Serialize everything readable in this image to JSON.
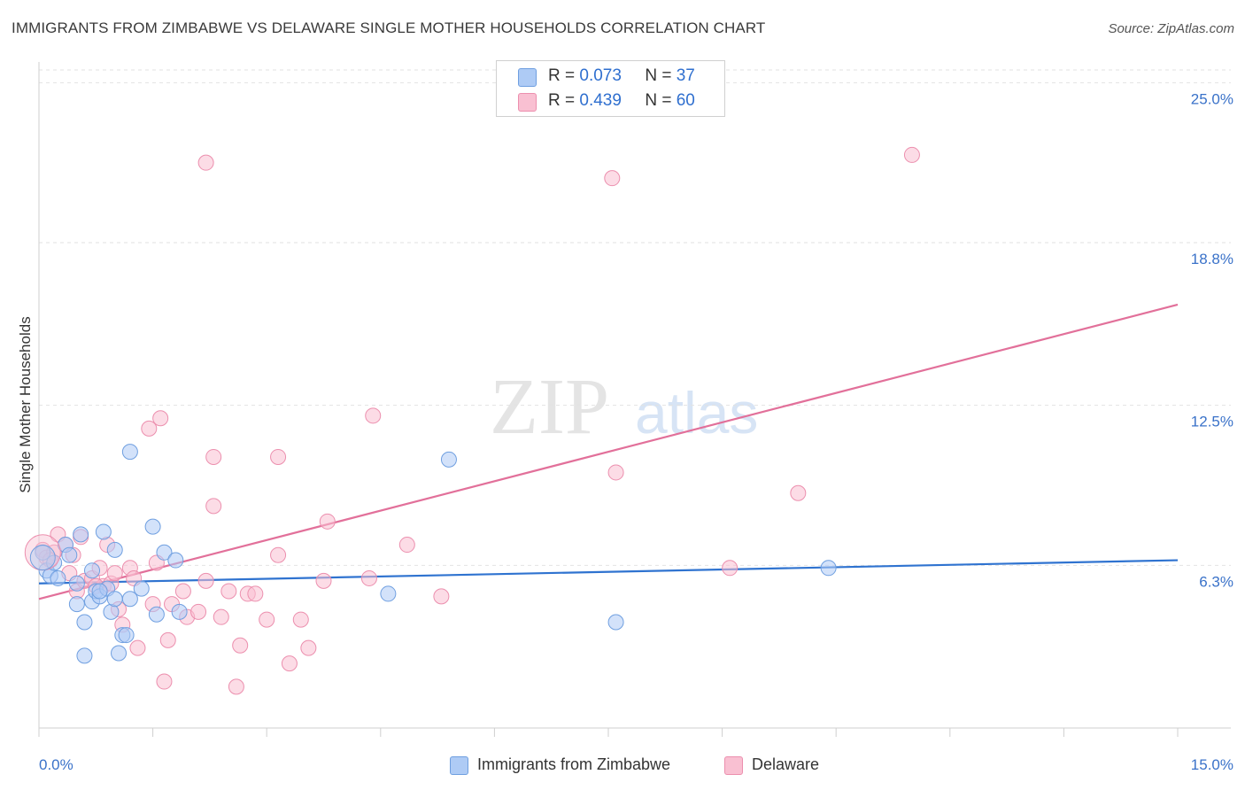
{
  "title": "IMMIGRANTS FROM ZIMBABWE VS DELAWARE SINGLE MOTHER HOUSEHOLDS CORRELATION CHART",
  "source": "Source: ZipAtlas.com",
  "watermark": {
    "zip": "ZIP",
    "atlas": "atlas"
  },
  "legend": {
    "series1": {
      "r_label": "R =",
      "r_value": "0.073",
      "n_label": "N =",
      "n_value": "37"
    },
    "series2": {
      "r_label": "R =",
      "r_value": "0.439",
      "n_label": "N =",
      "n_value": "60"
    }
  },
  "colors": {
    "blue_fill": "#aecbf5",
    "blue_stroke": "#6f9fe0",
    "blue_line": "#2f73d0",
    "pink_fill": "#f9c0d2",
    "pink_stroke": "#ec8fae",
    "pink_line": "#e2709a",
    "axis_text": "#3a72c9",
    "grid": "#e2e2e2"
  },
  "chart_data": {
    "type": "scatter",
    "title": "IMMIGRANTS FROM ZIMBABWE VS DELAWARE SINGLE MOTHER HOUSEHOLDS CORRELATION CHART",
    "xlabel": "",
    "ylabel": "Single Mother Households",
    "xlim": [
      0,
      15
    ],
    "ylim": [
      0,
      25.8
    ],
    "x_tick_labels": [
      "0.0%",
      "15.0%"
    ],
    "y_ticks": [
      6.3,
      12.5,
      18.8,
      25.0
    ],
    "y_tick_labels": [
      "6.3%",
      "12.5%",
      "18.8%",
      "25.0%"
    ],
    "grid": true,
    "legend_position": "top-center",
    "series": [
      {
        "name": "Immigrants from Zimbabwe",
        "color": "blue",
        "r": 0.073,
        "n": 37,
        "trend": {
          "x": [
            0,
            15
          ],
          "y": [
            5.6,
            6.5
          ]
        },
        "points": [
          [
            0.05,
            6.8
          ],
          [
            0.1,
            6.1
          ],
          [
            0.15,
            5.9
          ],
          [
            0.2,
            6.4
          ],
          [
            0.35,
            7.1
          ],
          [
            0.4,
            6.7
          ],
          [
            0.5,
            5.6
          ],
          [
            0.5,
            4.8
          ],
          [
            0.55,
            7.5
          ],
          [
            0.6,
            4.1
          ],
          [
            0.6,
            2.8
          ],
          [
            0.7,
            6.1
          ],
          [
            0.7,
            4.9
          ],
          [
            0.75,
            5.3
          ],
          [
            0.8,
            5.1
          ],
          [
            0.85,
            7.6
          ],
          [
            0.9,
            5.4
          ],
          [
            0.95,
            4.5
          ],
          [
            1.0,
            6.9
          ],
          [
            1.05,
            2.9
          ],
          [
            1.1,
            3.6
          ],
          [
            1.15,
            3.6
          ],
          [
            1.2,
            5.0
          ],
          [
            1.35,
            5.4
          ],
          [
            1.5,
            7.8
          ],
          [
            1.55,
            4.4
          ],
          [
            1.65,
            6.8
          ],
          [
            1.8,
            6.5
          ],
          [
            1.85,
            4.5
          ],
          [
            1.2,
            10.7
          ],
          [
            1.0,
            5.0
          ],
          [
            0.8,
            5.3
          ],
          [
            4.6,
            5.2
          ],
          [
            5.4,
            10.4
          ],
          [
            7.6,
            4.1
          ],
          [
            10.4,
            6.2
          ],
          [
            0.25,
            5.8
          ]
        ]
      },
      {
        "name": "Delaware",
        "color": "pink",
        "r": 0.439,
        "n": 60,
        "trend": {
          "x": [
            0,
            15
          ],
          "y": [
            5.0,
            16.4
          ]
        },
        "points": [
          [
            0.05,
            6.9
          ],
          [
            0.1,
            6.6
          ],
          [
            0.2,
            6.8
          ],
          [
            0.25,
            7.5
          ],
          [
            0.35,
            7.1
          ],
          [
            0.4,
            6.0
          ],
          [
            0.5,
            5.3
          ],
          [
            0.55,
            7.4
          ],
          [
            0.6,
            5.7
          ],
          [
            0.7,
            5.8
          ],
          [
            0.8,
            6.2
          ],
          [
            0.85,
            5.5
          ],
          [
            0.9,
            7.1
          ],
          [
            0.95,
            5.6
          ],
          [
            1.0,
            6.0
          ],
          [
            1.05,
            4.6
          ],
          [
            1.1,
            4.0
          ],
          [
            1.2,
            6.2
          ],
          [
            1.25,
            5.8
          ],
          [
            1.3,
            3.1
          ],
          [
            1.45,
            11.6
          ],
          [
            1.5,
            4.8
          ],
          [
            1.55,
            6.4
          ],
          [
            1.6,
            12.0
          ],
          [
            1.65,
            1.8
          ],
          [
            1.7,
            3.4
          ],
          [
            1.75,
            4.8
          ],
          [
            1.9,
            5.3
          ],
          [
            1.95,
            4.3
          ],
          [
            2.1,
            4.5
          ],
          [
            2.2,
            5.7
          ],
          [
            2.3,
            10.5
          ],
          [
            2.3,
            8.6
          ],
          [
            2.4,
            4.3
          ],
          [
            2.5,
            5.3
          ],
          [
            2.6,
            1.6
          ],
          [
            2.65,
            3.2
          ],
          [
            2.75,
            5.2
          ],
          [
            2.85,
            5.2
          ],
          [
            3.0,
            4.2
          ],
          [
            3.15,
            10.5
          ],
          [
            3.15,
            6.7
          ],
          [
            3.3,
            2.5
          ],
          [
            3.45,
            4.2
          ],
          [
            3.55,
            3.1
          ],
          [
            3.75,
            5.7
          ],
          [
            3.8,
            8.0
          ],
          [
            2.2,
            21.9
          ],
          [
            4.35,
            5.8
          ],
          [
            4.4,
            12.1
          ],
          [
            4.85,
            7.1
          ],
          [
            5.3,
            5.1
          ],
          [
            7.55,
            21.3
          ],
          [
            7.6,
            9.9
          ],
          [
            9.1,
            6.2
          ],
          [
            10.0,
            9.1
          ],
          [
            11.5,
            22.2
          ],
          [
            0.15,
            6.5
          ],
          [
            0.45,
            6.7
          ],
          [
            0.75,
            5.5
          ]
        ]
      }
    ]
  },
  "bottom_legend": [
    {
      "label": "Immigrants from Zimbabwe"
    },
    {
      "label": "Delaware"
    }
  ]
}
